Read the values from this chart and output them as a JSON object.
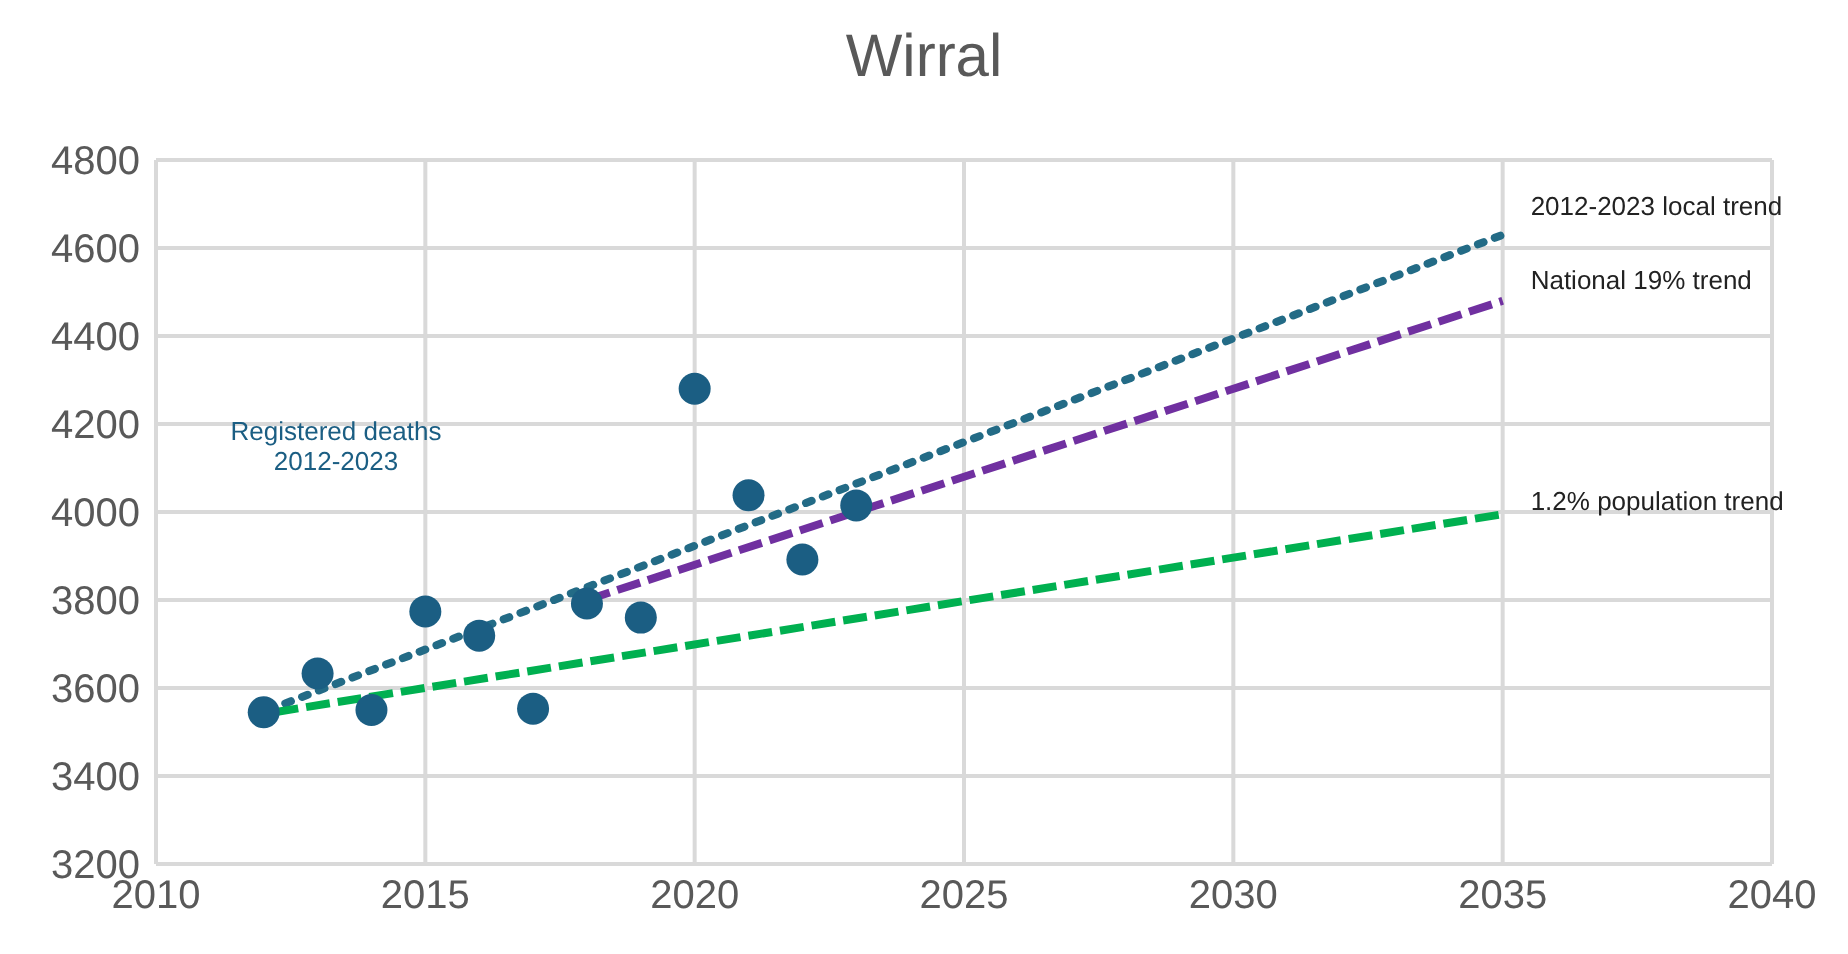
{
  "chart_data": {
    "type": "scatter",
    "title": "Wirral",
    "xlim": [
      2010,
      2040
    ],
    "xticks": [
      2010,
      2015,
      2020,
      2025,
      2030,
      2035,
      2040
    ],
    "ylim": [
      3200,
      4800
    ],
    "yticks": [
      3200,
      3400,
      3600,
      3800,
      4000,
      4200,
      4400,
      4600,
      4800
    ],
    "grid": true,
    "series": [
      {
        "name": "Registered deaths 2012-2023",
        "marker": "circle",
        "color": "#1b5e83",
        "x": [
          2012,
          2013,
          2014,
          2015,
          2016,
          2017,
          2018,
          2019,
          2020,
          2021,
          2022,
          2023
        ],
        "values": [
          3545,
          3633,
          3550,
          3774,
          3719,
          3553,
          3792,
          3760,
          4280,
          4038,
          3892,
          4015
        ]
      },
      {
        "name": "2012-2023 local trend",
        "type": "line",
        "line_style": "dotted",
        "marker": "none",
        "color": "#236b86",
        "x": [
          2012.4,
          2035
        ],
        "values": [
          3565,
          4630
        ]
      },
      {
        "name": "National 19%  trend",
        "type": "line",
        "line_style": "dashed",
        "marker": "none",
        "color": "#7030a0",
        "x": [
          2018,
          2035
        ],
        "values": [
          3800,
          4480
        ]
      },
      {
        "name": "1.2%  population trend",
        "type": "line",
        "line_style": "dashed",
        "marker": "none",
        "color": "#00b050",
        "x": [
          2012.2,
          2035
        ],
        "values": [
          3545,
          3995
        ]
      }
    ]
  }
}
